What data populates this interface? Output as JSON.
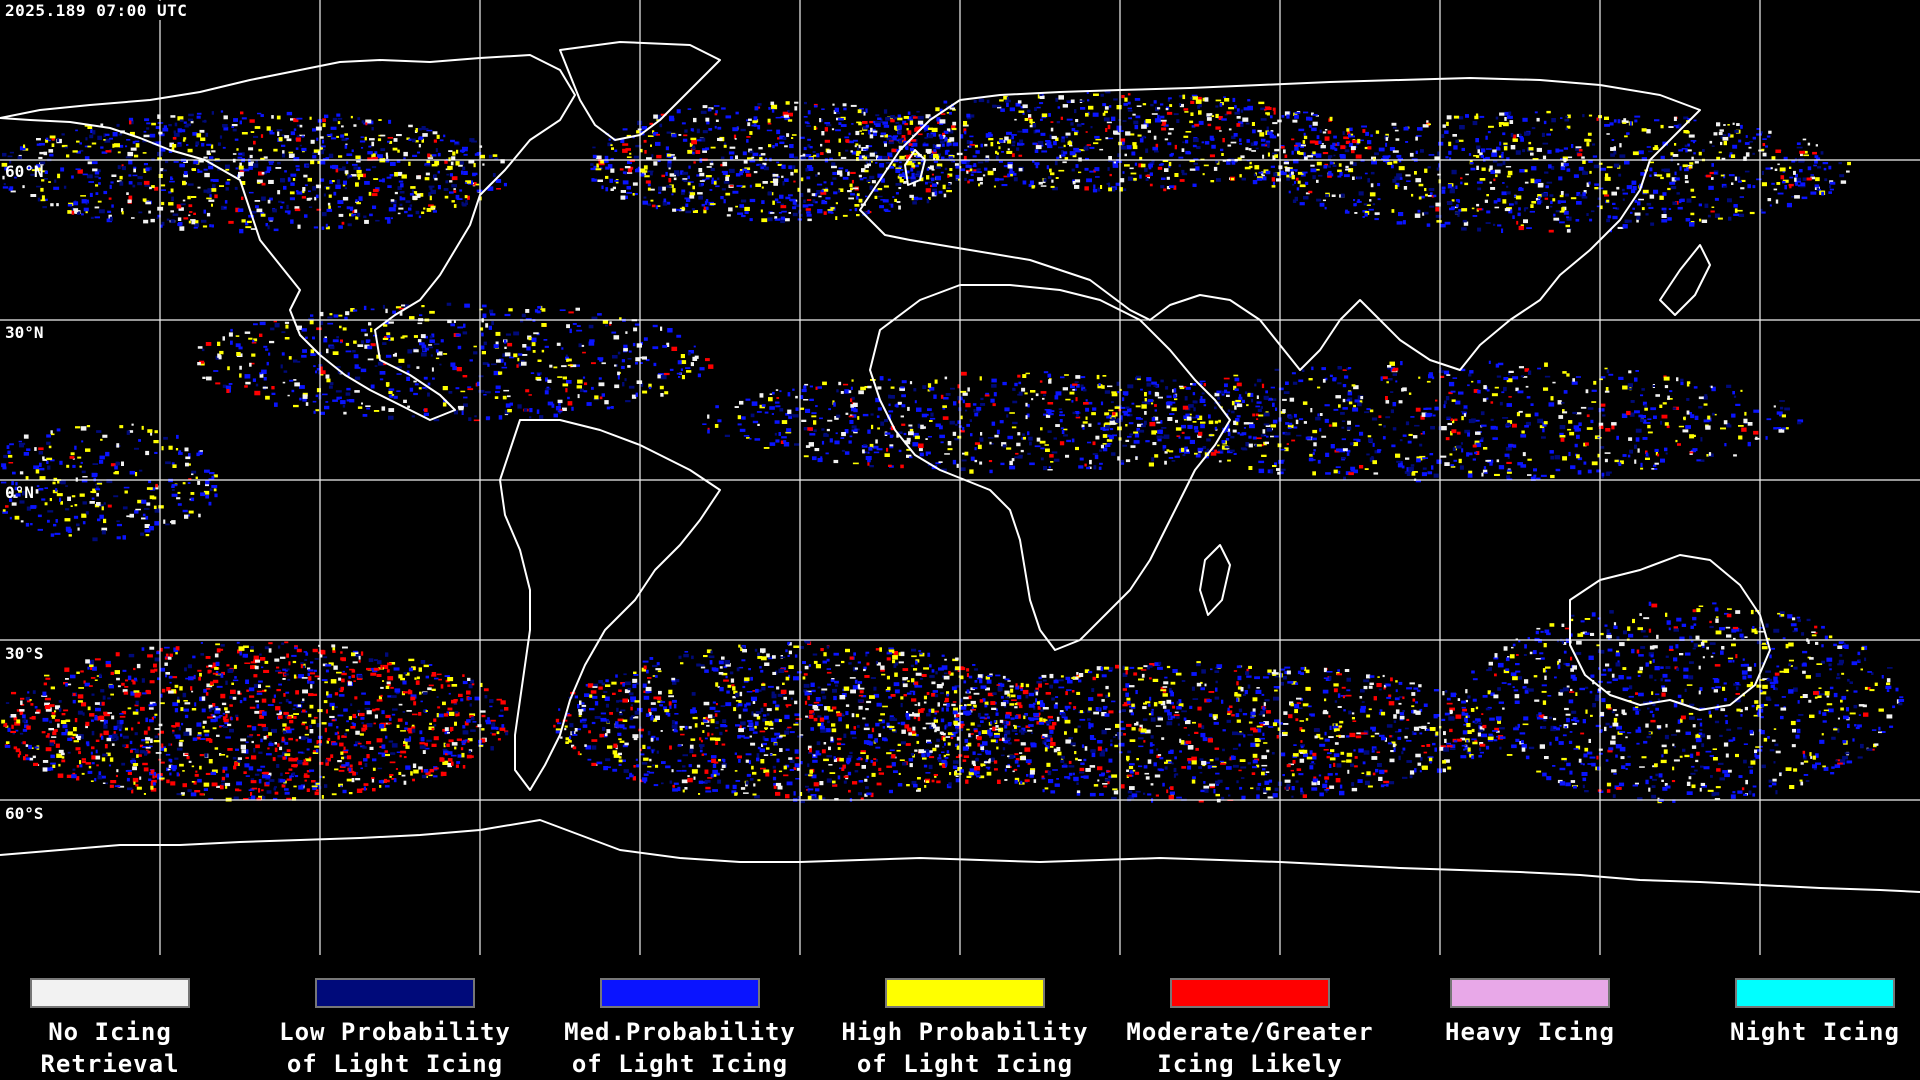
{
  "timestamp": "2025.189 07:00 UTC",
  "lat_labels": {
    "n60": "60°N",
    "n30": "30°N",
    "eq": "0°N",
    "s30": "30°S",
    "s60": "60°S"
  },
  "legend": [
    {
      "line1": "No Icing",
      "line2": "Retrieval",
      "color": "#f2f2f2"
    },
    {
      "line1": "Low Probability",
      "line2": "of Light Icing",
      "color": "#000a7a"
    },
    {
      "line1": "Med.Probability",
      "line2": "of Light Icing",
      "color": "#0a14ff"
    },
    {
      "line1": "High Probability",
      "line2": "of Light Icing",
      "color": "#ffff00"
    },
    {
      "line1": "Moderate/Greater",
      "line2": "Icing Likely",
      "color": "#ff0000"
    },
    {
      "line1": "Heavy Icing",
      "line2": "",
      "color": "#e8a8e8"
    },
    {
      "line1": "Night Icing",
      "line2": "",
      "color": "#00ffff"
    }
  ],
  "colors": {
    "background": "#000000",
    "grid": "#ffffff",
    "coastline": "#ffffff"
  }
}
